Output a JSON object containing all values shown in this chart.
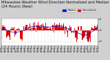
{
  "title": "Milwaukee Weather Wind Direction Normalized and Median (24 Hours) (New)",
  "background_color": "#d0d0d0",
  "plot_bg_color": "#ffffff",
  "bar_color": "#dd0000",
  "median_color": "#0000cc",
  "legend_norm_label": "Normalized",
  "legend_med_label": "Median",
  "ylim": [
    -7,
    5.5
  ],
  "yticks": [
    -5,
    0,
    5
  ],
  "ytick_labels": [
    "-5",
    "0",
    "5"
  ],
  "n_points": 144,
  "title_fontsize": 3.8,
  "tick_fontsize": 2.8,
  "grid_color": "#c0c0c0",
  "grid_style": "dotted"
}
